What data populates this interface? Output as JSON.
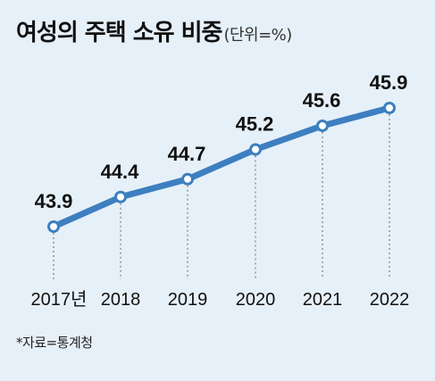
{
  "chart_data": {
    "type": "line",
    "title": "여성의 주택 소유 비중",
    "subtitle": "(단위=%)",
    "categories": [
      "2017년",
      "2018",
      "2019",
      "2020",
      "2021",
      "2022"
    ],
    "series": [
      {
        "values": [
          43.9,
          44.4,
          44.7,
          45.2,
          45.6,
          45.9
        ]
      }
    ],
    "value_labels": [
      "43.9",
      "44.4",
      "44.7",
      "45.2",
      "45.6",
      "45.9"
    ],
    "line_color": "#3d7fc0",
    "marker_fill": "#ffffff",
    "grid": "dotted vertical drop-lines",
    "legend": "none"
  },
  "source": "*자료=통계청",
  "colors": {
    "background": "#e6f0f8",
    "line": "#3d7fc0",
    "dropline": "#666666"
  }
}
